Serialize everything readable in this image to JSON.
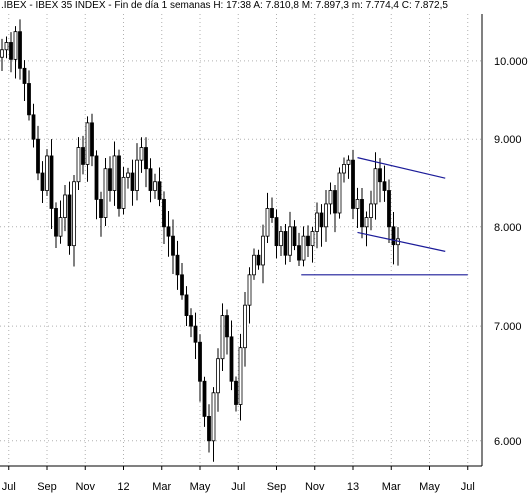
{
  "header": {
    "title": ".IBEX - IBEX 35 INDEX - Fin de día 1 semanas  H: 17:38  A: 7.810,8  M: 7.897,3  m: 7.774,4  C: 7.872,5"
  },
  "chart_data": {
    "type": "candlestick",
    "title": ".IBEX - IBEX 35 INDEX - Fin de día 1 semanas  H: 17:38  A: 7.810,8  M: 7.897,3  m: 7.774,4  C: 7.872,5",
    "y_scale": "log",
    "y_ticks": [
      6000,
      7000,
      8000,
      9000,
      10000
    ],
    "y_tick_labels": [
      "6.000",
      "7.000",
      "8.000",
      "9.000",
      "10.000"
    ],
    "ylim": [
      5800,
      10650
    ],
    "x_ticks": [
      {
        "i": 1.5,
        "label": "Jul"
      },
      {
        "i": 10,
        "label": "Sep"
      },
      {
        "i": 18.5,
        "label": "Nov"
      },
      {
        "i": 27,
        "label": "12"
      },
      {
        "i": 35.5,
        "label": "Mar"
      },
      {
        "i": 44,
        "label": "May"
      },
      {
        "i": 52.5,
        "label": "Jul"
      },
      {
        "i": 61,
        "label": "Sep"
      },
      {
        "i": 69.5,
        "label": "Nov"
      },
      {
        "i": 78,
        "label": "13"
      },
      {
        "i": 86.5,
        "label": "Mar"
      },
      {
        "i": 95,
        "label": "May"
      },
      {
        "i": 103.5,
        "label": "Jul"
      }
    ],
    "close": [
      10150,
      10250,
      10020,
      10400,
      9900,
      9700,
      9300,
      9000,
      8600,
      8400,
      8800,
      8200,
      7900,
      8100,
      8350,
      7800,
      8500,
      8900,
      8700,
      9200,
      8800,
      8300,
      8100,
      8650,
      8400,
      8800,
      8200,
      8550,
      8600,
      8400,
      8750,
      8900,
      8650,
      8400,
      8500,
      8300,
      8000,
      7900,
      7700,
      7500,
      7300,
      7100,
      7000,
      6850,
      6500,
      6200,
      6000,
      6400,
      6700,
      7100,
      6900,
      6500,
      6300,
      6800,
      7200,
      7500,
      7700,
      7600,
      7900,
      8200,
      8100,
      7800,
      7950,
      7700,
      8000,
      7800,
      7650,
      7900,
      7800,
      7950,
      8150,
      8000,
      8250,
      8400,
      8150,
      8600,
      8700,
      8750,
      8200,
      8300,
      8000,
      8100,
      8250,
      8650,
      8500,
      8400,
      8000,
      7810,
      7872
    ],
    "channel_upper": {
      "x1": 79,
      "y1": 8780,
      "x2": 98.5,
      "y2": 8540
    },
    "channel_lower": {
      "x1": 79,
      "y1": 7940,
      "x2": 98.5,
      "y2": 7740
    },
    "support_line": {
      "x1": 66.5,
      "y1": 7500,
      "x2": 103.5,
      "y2": 7500
    },
    "colors": {
      "candle": "#000000",
      "trendline": "#1c1c99",
      "grid": "#b0b0b0",
      "axis": "#000000"
    }
  }
}
